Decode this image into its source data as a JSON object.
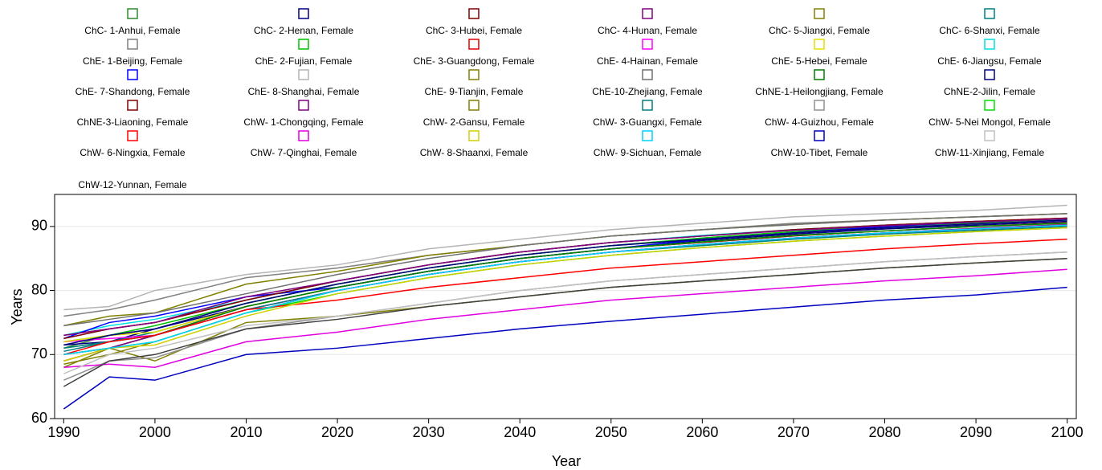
{
  "chart_data": {
    "type": "line",
    "x_label": "Year",
    "y_label": "Years",
    "x": [
      1990,
      1995,
      2000,
      2010,
      2020,
      2030,
      2040,
      2050,
      2060,
      2070,
      2080,
      2090,
      2100
    ],
    "xlim": [
      1989,
      2101
    ],
    "xticks": [
      1990,
      2000,
      2010,
      2020,
      2030,
      2040,
      2050,
      2060,
      2070,
      2080,
      2090,
      2100
    ],
    "ylim": [
      60,
      95
    ],
    "yticks": [
      60,
      70,
      80,
      90
    ],
    "grid": true,
    "series": [
      {
        "name": "ChC- 1-Anhui, Female",
        "color": "#2e8b2e",
        "values": [
          71,
          73,
          74,
          78,
          81,
          83.5,
          85.5,
          87,
          88,
          89,
          89.8,
          90.4,
          91
        ]
      },
      {
        "name": "ChC- 2-Henan, Female",
        "color": "#000080",
        "values": [
          71.5,
          72,
          74,
          77.5,
          80.5,
          83,
          85,
          86.5,
          87.8,
          88.8,
          89.6,
          90.2,
          90.8
        ]
      },
      {
        "name": "ChC- 3-Hubei, Female",
        "color": "#800000",
        "values": [
          69,
          71,
          73,
          77.5,
          80.5,
          83,
          85,
          86.5,
          87.5,
          88.5,
          89.3,
          90,
          90.6
        ]
      },
      {
        "name": "ChC- 4-Hunan, Female",
        "color": "#800080",
        "values": [
          70,
          71,
          73,
          77,
          80,
          82.5,
          84.5,
          86,
          87.2,
          88.2,
          89,
          89.7,
          90.3
        ]
      },
      {
        "name": "ChC- 5-Jiangxi, Female",
        "color": "#808000",
        "values": [
          68.5,
          70,
          72,
          76.5,
          80,
          82.5,
          84.5,
          86,
          87.2,
          88.2,
          89,
          89.6,
          90.2
        ]
      },
      {
        "name": "ChC- 6-Shanxi, Female",
        "color": "#008080",
        "values": [
          70.5,
          72,
          73.5,
          77.5,
          80.5,
          83,
          85,
          86.5,
          87.6,
          88.6,
          89.3,
          90,
          90.5
        ]
      },
      {
        "name": "ChE- 1-Beijing, Female",
        "color": "#808080",
        "values": [
          76,
          77,
          78.5,
          82,
          83.5,
          85.5,
          87,
          88.5,
          89.5,
          90.5,
          91,
          91.5,
          92
        ]
      },
      {
        "name": "ChE- 2-Fujian, Female",
        "color": "#00c000",
        "values": [
          72,
          73,
          74.5,
          78,
          81,
          83.5,
          85.5,
          87,
          88.2,
          89.2,
          90,
          90.6,
          91.2
        ]
      },
      {
        "name": "ChE- 3-Guangdong, Female",
        "color": "#e00000",
        "values": [
          73,
          74,
          75,
          78.5,
          81.5,
          84,
          86,
          87.5,
          88.5,
          89.5,
          90.2,
          90.8,
          91.3
        ]
      },
      {
        "name": "ChE- 4-Hainan, Female",
        "color": "#ff00ff",
        "values": [
          72,
          72.5,
          73,
          77,
          80,
          82.5,
          84.5,
          86,
          87.2,
          88.2,
          89,
          89.6,
          90.2
        ]
      },
      {
        "name": "ChE- 5-Hebei, Female",
        "color": "#e0e000",
        "values": [
          72,
          73,
          73.5,
          77.5,
          80.5,
          83,
          85,
          86.5,
          87.6,
          88.6,
          89.3,
          90,
          90.5
        ]
      },
      {
        "name": "ChE- 6-Jiangsu, Female",
        "color": "#00e0e0",
        "values": [
          73,
          74.5,
          75.5,
          78.5,
          81.5,
          84,
          86,
          87.5,
          88.6,
          89.5,
          90.2,
          90.8,
          91.2
        ]
      },
      {
        "name": "ChE- 7-Shandong, Female",
        "color": "#0000ff",
        "values": [
          72.5,
          75,
          76,
          79,
          80.5,
          83,
          85,
          86.5,
          88,
          89,
          90,
          90.7,
          91.3
        ]
      },
      {
        "name": "ChE- 8-Shanghai, Female",
        "color": "#b4b4b4",
        "values": [
          77,
          77.5,
          80,
          82.5,
          84,
          86.5,
          88,
          89.5,
          90.5,
          91.5,
          92,
          92.5,
          93.3
        ]
      },
      {
        "name": "ChE- 9-Tianjin, Female",
        "color": "#808000",
        "values": [
          74.5,
          76,
          76.5,
          81,
          83,
          85.5,
          87,
          88.5,
          89.5,
          90.3,
          91,
          91.5,
          92
        ]
      },
      {
        "name": "ChE-10-Zhejiang, Female",
        "color": "#707070",
        "values": [
          74.5,
          75.5,
          76.5,
          79.5,
          82.5,
          85,
          87,
          88.5,
          89.5,
          90.3,
          91,
          91.5,
          92
        ]
      },
      {
        "name": "ChNE-1-Heilongjiang, Female",
        "color": "#008000",
        "values": [
          71,
          72,
          73,
          77.5,
          80.5,
          83,
          85,
          86.5,
          87.6,
          88.6,
          89.3,
          90,
          90.5
        ]
      },
      {
        "name": "ChNE-2-Jilin, Female",
        "color": "#000080",
        "values": [
          71.5,
          73,
          74,
          78,
          81,
          83.5,
          85.5,
          87,
          88,
          89,
          89.8,
          90.4,
          91
        ]
      },
      {
        "name": "ChNE-3-Liaoning, Female",
        "color": "#800000",
        "values": [
          72.5,
          74,
          75,
          78.5,
          81.5,
          84,
          86,
          87.5,
          88.5,
          89.5,
          90.2,
          90.8,
          91.3
        ]
      },
      {
        "name": "ChW- 1-Chongqing, Female",
        "color": "#800080",
        "values": [
          73,
          74,
          75,
          79,
          81.5,
          84,
          86,
          87.5,
          88.5,
          89.4,
          90.1,
          90.7,
          91.2
        ]
      },
      {
        "name": "ChW- 2-Gansu, Female",
        "color": "#808000",
        "values": [
          68,
          71,
          69,
          75,
          76,
          77.5,
          79,
          80.5,
          81.5,
          82.5,
          83.5,
          84.3,
          85
        ]
      },
      {
        "name": "ChW- 3-Guangxi, Female",
        "color": "#008080",
        "values": [
          71,
          72,
          73,
          77,
          80,
          82.5,
          84.5,
          86,
          87,
          88,
          88.8,
          89.4,
          90
        ]
      },
      {
        "name": "ChW- 4-Guizhou, Female",
        "color": "#909090",
        "values": [
          66,
          69,
          69.5,
          74,
          76,
          78,
          80,
          81.5,
          82.5,
          83.5,
          84.5,
          85.3,
          86
        ]
      },
      {
        "name": "ChW- 5-Nei Mongol, Female",
        "color": "#00e000",
        "values": [
          70,
          71,
          72,
          76.5,
          79.5,
          82,
          84,
          85.5,
          86.7,
          87.7,
          88.5,
          89.2,
          89.8
        ]
      },
      {
        "name": "ChW- 6-Ningxia, Female",
        "color": "#ff0000",
        "values": [
          70,
          72,
          73,
          77,
          78.5,
          80.5,
          82,
          83.5,
          84.5,
          85.5,
          86.5,
          87.3,
          88
        ]
      },
      {
        "name": "ChW- 7-Qinghai, Female",
        "color": "#e000e0",
        "values": [
          68,
          68.5,
          68,
          72,
          73.5,
          75.5,
          77,
          78.5,
          79.5,
          80.5,
          81.5,
          82.3,
          83.3
        ]
      },
      {
        "name": "ChW- 8-Shaanxi, Female",
        "color": "#d0d000",
        "values": [
          69,
          71,
          71.5,
          76,
          79.5,
          82,
          84,
          85.5,
          86.7,
          87.7,
          88.5,
          89.2,
          89.8
        ]
      },
      {
        "name": "ChW- 9-Sichuan, Female",
        "color": "#00d0ff",
        "values": [
          70,
          71,
          72,
          76.5,
          80,
          82.5,
          84.5,
          86,
          87.2,
          88.2,
          89,
          89.6,
          90.2
        ]
      },
      {
        "name": "ChW-10-Tibet, Female",
        "color": "#0000c0",
        "values": [
          61.5,
          66.5,
          66,
          70,
          71,
          72.5,
          74,
          75.2,
          76.3,
          77.4,
          78.5,
          79.3,
          80.5
        ]
      },
      {
        "name": "ChW-11-Xinjiang, Female",
        "color": "#c0c0c0",
        "values": [
          67,
          70,
          71,
          74.5,
          76,
          78,
          80,
          81.5,
          82.5,
          83.5,
          84.5,
          85.3,
          86
        ]
      },
      {
        "name": "ChW-12-Yunnan, Female",
        "color": "#404040",
        "values": [
          65,
          69,
          70,
          74,
          75.5,
          77.5,
          79,
          80.5,
          81.5,
          82.5,
          83.5,
          84.3,
          85
        ]
      }
    ]
  }
}
